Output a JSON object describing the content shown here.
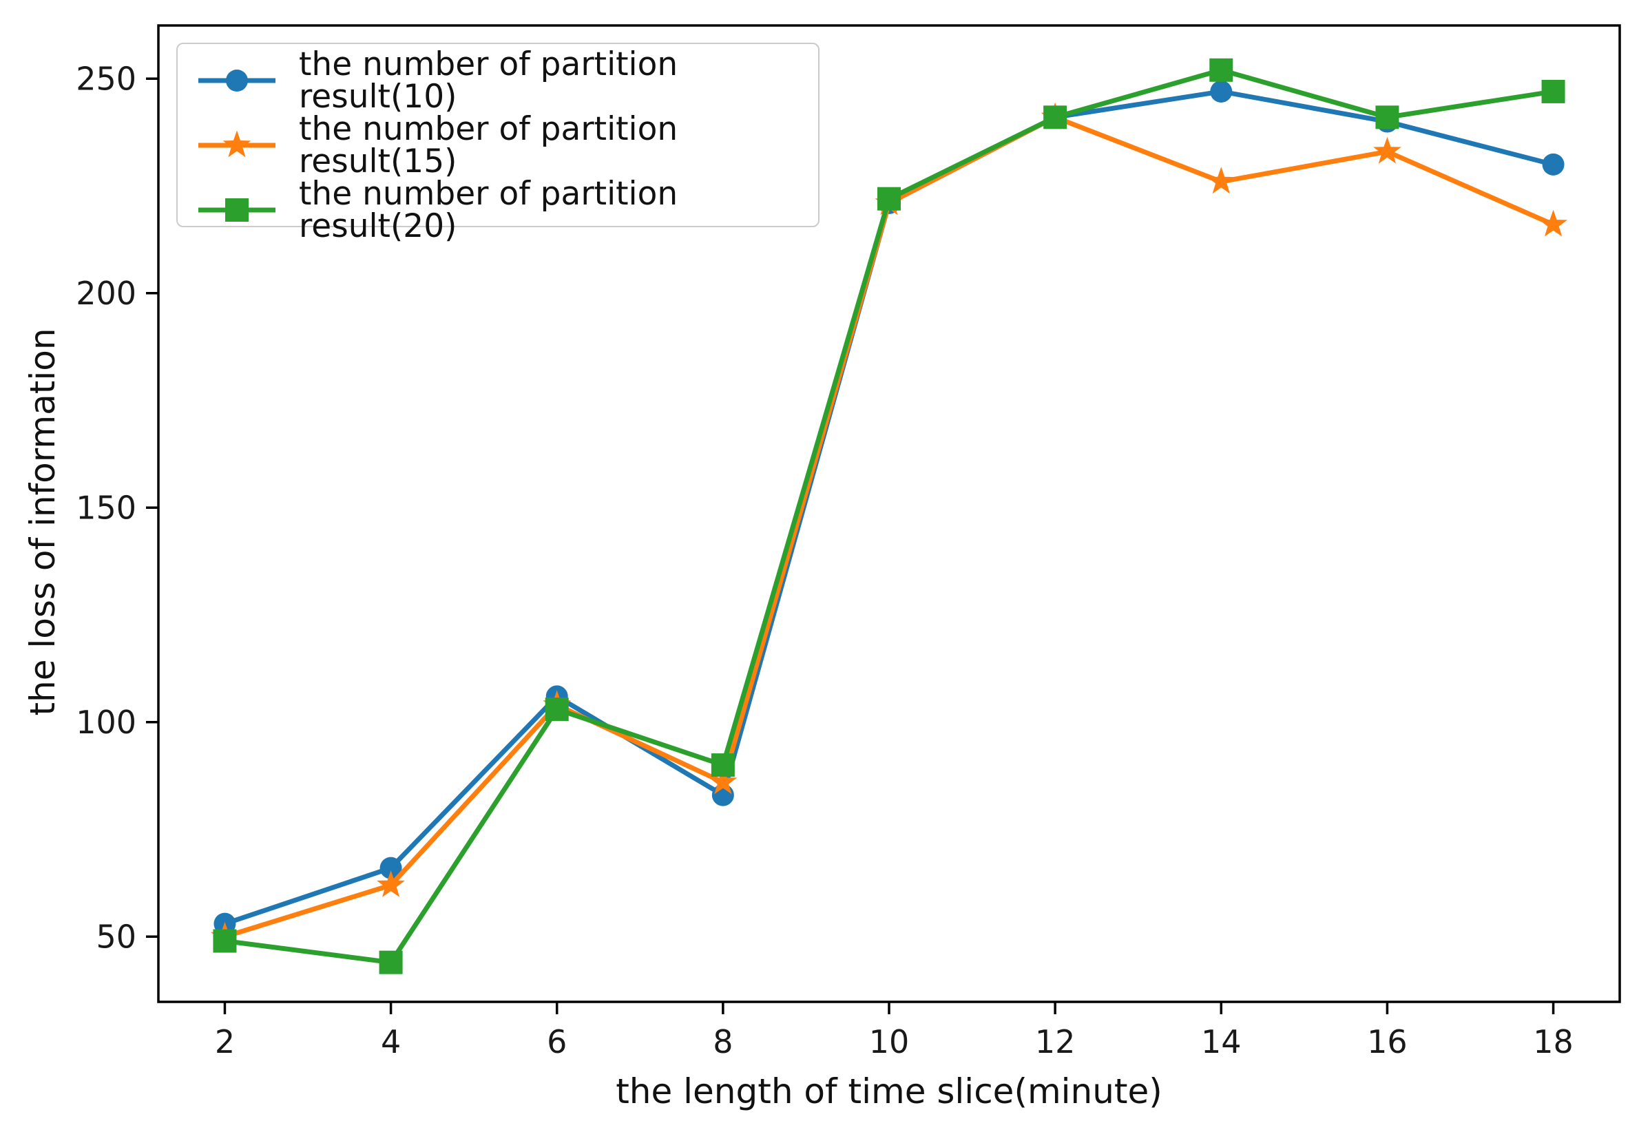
{
  "chart_data": {
    "type": "line",
    "title": "",
    "xlabel": "the length of time slice(minute)",
    "ylabel": "the loss of information",
    "x": [
      2,
      4,
      6,
      8,
      10,
      12,
      14,
      16,
      18
    ],
    "xticks": [
      2,
      4,
      6,
      8,
      10,
      12,
      14,
      16,
      18
    ],
    "yticks": [
      50,
      100,
      150,
      200,
      250
    ],
    "xlim": [
      1.2,
      18.8
    ],
    "ylim": [
      34.8,
      262.4
    ],
    "grid": false,
    "legend_position": "upper left",
    "series": [
      {
        "name": "the number of partition result(10)",
        "color": "#1f77b4",
        "marker": "circle",
        "values": [
          53,
          66,
          106,
          83,
          221,
          241,
          247,
          240,
          230
        ]
      },
      {
        "name": "the number of partition result(15)",
        "color": "#ff7f0e",
        "marker": "star",
        "values": [
          50,
          62,
          104,
          86,
          221,
          241,
          226,
          233,
          216
        ]
      },
      {
        "name": "the number of partition result(20)",
        "color": "#2ca02c",
        "marker": "square",
        "values": [
          49,
          44,
          103,
          90,
          222,
          241,
          252,
          241,
          247
        ]
      }
    ],
    "axis_color": "#000000",
    "tick_label_color": "#191919"
  }
}
